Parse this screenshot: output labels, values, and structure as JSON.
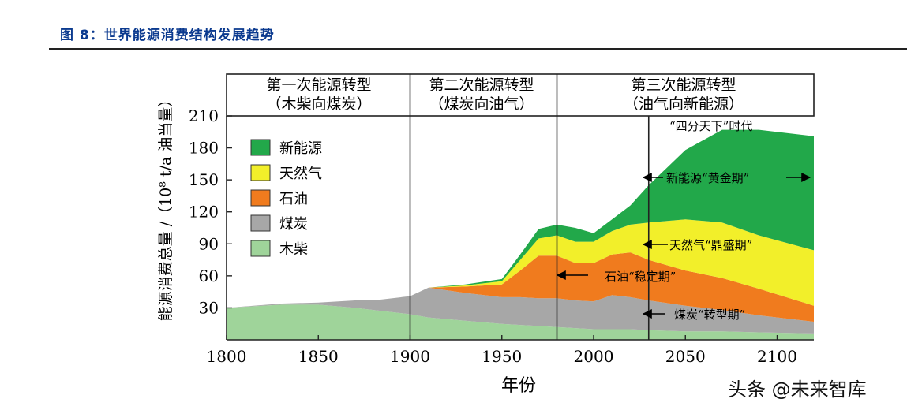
{
  "figure_title": "图 8：世界能源消费结构发展趋势",
  "watermark": "头条 @未来智库",
  "colors": {
    "wood": "#9fd49a",
    "coal": "#a7a7a7",
    "oil": "#f07b1e",
    "gas": "#f2ef2a",
    "renewable": "#22a84a",
    "title": "#0b3a8f"
  },
  "chart_data": {
    "type": "area",
    "stacked": true,
    "xlabel": "年份",
    "ylabel": "能源消费总量 /（10⁸ t/a 油当量）",
    "xlim": [
      1800,
      2120
    ],
    "ylim": [
      0,
      210
    ],
    "x_ticks": [
      "1800",
      "1850",
      "1900",
      "1950",
      "2000",
      "2050",
      "2100"
    ],
    "y_ticks": [
      "30",
      "60",
      "90",
      "120",
      "150",
      "180",
      "210"
    ],
    "x": [
      1800,
      1830,
      1850,
      1870,
      1880,
      1900,
      1910,
      1930,
      1950,
      1960,
      1970,
      1980,
      1990,
      2000,
      2010,
      2020,
      2030,
      2050,
      2070,
      2090,
      2120
    ],
    "series": [
      {
        "name": "木柴",
        "key": "wood",
        "values": [
          30,
          33,
          33,
          30,
          28,
          24,
          21,
          18,
          15,
          14,
          13,
          12,
          11,
          10,
          10,
          10,
          9,
          8,
          8,
          7,
          6
        ]
      },
      {
        "name": "煤炭",
        "key": "coal",
        "values": [
          0,
          1,
          2,
          7,
          9,
          17,
          28,
          26,
          25,
          26,
          26,
          27,
          26,
          26,
          32,
          30,
          28,
          24,
          20,
          16,
          11
        ]
      },
      {
        "name": "石油",
        "key": "oil",
        "values": [
          0,
          0,
          0,
          0,
          0,
          0,
          0,
          6,
          12,
          25,
          40,
          40,
          35,
          36,
          38,
          42,
          38,
          33,
          30,
          25,
          15
        ]
      },
      {
        "name": "天然气",
        "key": "gas",
        "values": [
          0,
          0,
          0,
          0,
          0,
          0,
          0,
          1,
          3,
          10,
          16,
          19,
          20,
          20,
          22,
          26,
          35,
          48,
          52,
          50,
          52
        ]
      },
      {
        "name": "新能源",
        "key": "renewable",
        "values": [
          0,
          0,
          0,
          0,
          0,
          0,
          0,
          1,
          2,
          5,
          9,
          10,
          13,
          8,
          11,
          18,
          35,
          65,
          87,
          99,
          107
        ]
      }
    ],
    "legend_order": [
      "新能源",
      "天然气",
      "石油",
      "煤炭",
      "木柴"
    ],
    "legend_placement": "top-left",
    "period_dividers": [
      1900,
      1980,
      2030
    ],
    "periods": [
      {
        "name": "第一次能源转型",
        "sub": "（木柴向煤炭）"
      },
      {
        "name": "第二次能源转型",
        "sub": "（煤炭向油气）"
      },
      {
        "name": "第三次能源转型",
        "sub": "（油气向新能源）"
      }
    ],
    "annotations": {
      "era": "“四分天下”时代",
      "renewable": "新能源“黄金期”",
      "gas": "天然气“鼎盛期”",
      "oil": "石油“稳定期”",
      "coal": "煤炭“转型期”"
    }
  }
}
